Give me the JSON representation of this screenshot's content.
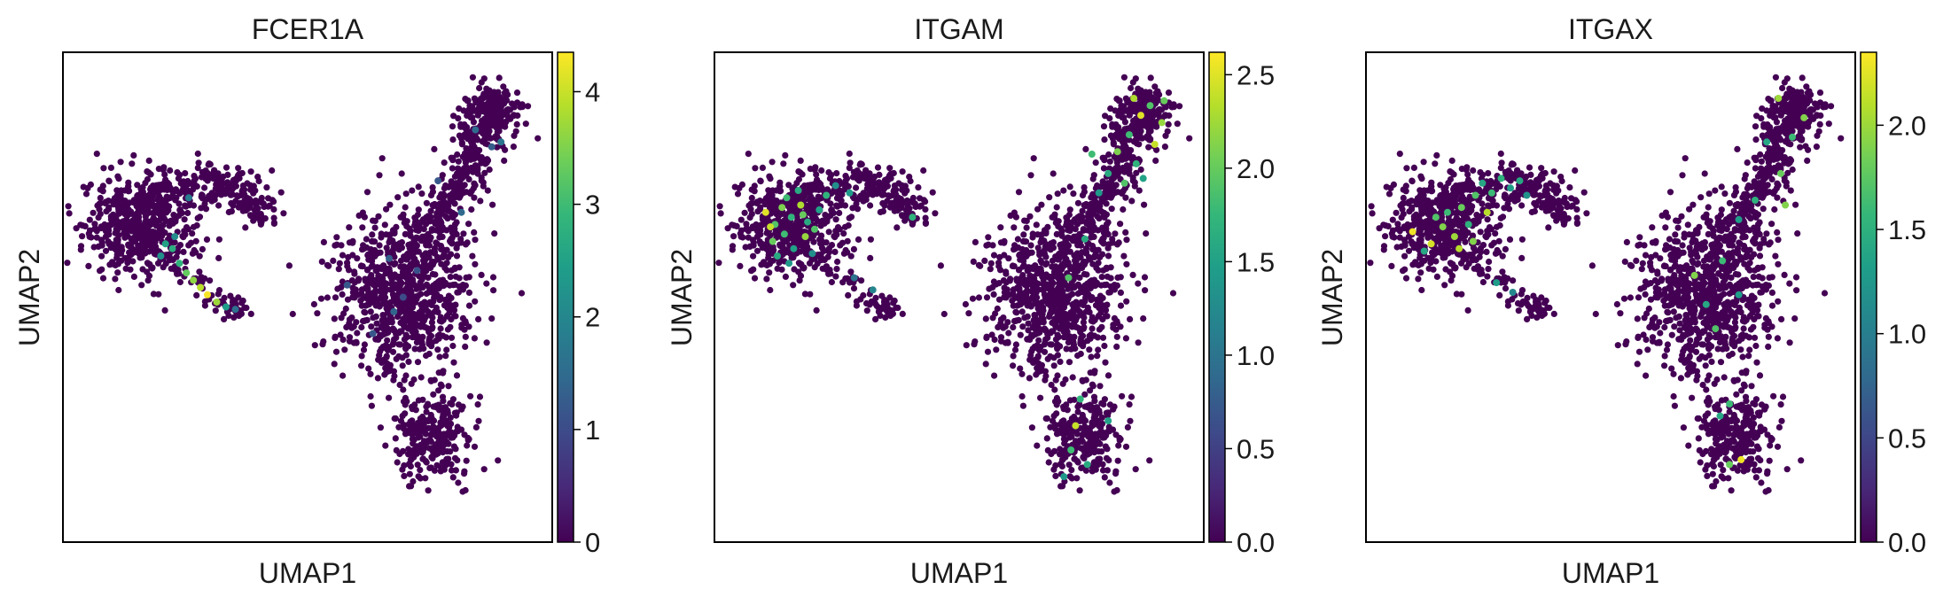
{
  "chart_data": [
    {
      "type": "scatter",
      "title": "FCER1A",
      "xlabel": "UMAP1",
      "ylabel": "UMAP2",
      "colormap": "viridis",
      "colorbar": {
        "range": [
          0,
          4.35
        ],
        "ticks": [
          0,
          1,
          2,
          3,
          4
        ],
        "tick_labels": [
          "0",
          "1",
          "2",
          "3",
          "4"
        ]
      },
      "highlights": [
        {
          "x": 3.0,
          "y": 6.3,
          "v": 2.5
        },
        {
          "x": 3.3,
          "y": 6.1,
          "v": 2.7
        },
        {
          "x": 3.6,
          "y": 5.5,
          "v": 2.8
        },
        {
          "x": 3.9,
          "y": 5.1,
          "v": 3.3
        },
        {
          "x": 4.2,
          "y": 4.8,
          "v": 3.6
        },
        {
          "x": 4.5,
          "y": 4.5,
          "v": 3.9
        },
        {
          "x": 4.8,
          "y": 4.2,
          "v": 4.3
        },
        {
          "x": 5.2,
          "y": 3.9,
          "v": 3.7
        },
        {
          "x": 5.6,
          "y": 3.7,
          "v": 2.4
        },
        {
          "x": 6.0,
          "y": 3.6,
          "v": 1.6
        },
        {
          "x": 3.4,
          "y": 6.6,
          "v": 2.1
        },
        {
          "x": 2.8,
          "y": 5.8,
          "v": 2.2
        },
        {
          "x": 4.0,
          "y": 8.2,
          "v": 1.8
        },
        {
          "x": 12.8,
          "y": 3.5,
          "v": 1.4
        },
        {
          "x": 11.9,
          "y": 2.6,
          "v": 1.2
        },
        {
          "x": 12.6,
          "y": 5.7,
          "v": 1.3
        },
        {
          "x": 13.8,
          "y": 5.2,
          "v": 1.1
        },
        {
          "x": 15.7,
          "y": 7.6,
          "v": 1.5
        },
        {
          "x": 14.7,
          "y": 8.9,
          "v": 1.2
        },
        {
          "x": 16.3,
          "y": 11.0,
          "v": 1.5
        },
        {
          "x": 17.0,
          "y": 10.3,
          "v": 1.3
        },
        {
          "x": 17.4,
          "y": 10.5,
          "v": 1.7
        },
        {
          "x": 13.2,
          "y": 4.1,
          "v": 1.0
        },
        {
          "x": 10.8,
          "y": 4.6,
          "v": 1.2
        }
      ]
    },
    {
      "type": "scatter",
      "title": "ITGAM",
      "xlabel": "UMAP1",
      "ylabel": "UMAP2",
      "colormap": "viridis",
      "colorbar": {
        "range": [
          0,
          2.62
        ],
        "ticks": [
          0,
          0.5,
          1,
          1.5,
          2,
          2.5
        ],
        "tick_labels": [
          "0.0",
          "0.5",
          "1.0",
          "1.5",
          "2.0",
          "2.5"
        ]
      },
      "highlights": [
        {
          "x": 0.8,
          "y": 7.6,
          "v": 2.5
        },
        {
          "x": 1.2,
          "y": 7.1,
          "v": 1.9
        },
        {
          "x": 1.5,
          "y": 7.8,
          "v": 2.1
        },
        {
          "x": 1.9,
          "y": 7.4,
          "v": 1.7
        },
        {
          "x": 2.3,
          "y": 7.9,
          "v": 2.3
        },
        {
          "x": 2.6,
          "y": 7.2,
          "v": 1.6
        },
        {
          "x": 1.1,
          "y": 6.4,
          "v": 2.0
        },
        {
          "x": 1.6,
          "y": 6.7,
          "v": 1.8
        },
        {
          "x": 2.0,
          "y": 6.1,
          "v": 1.5
        },
        {
          "x": 2.5,
          "y": 6.6,
          "v": 2.2
        },
        {
          "x": 2.9,
          "y": 6.9,
          "v": 1.9
        },
        {
          "x": 1.3,
          "y": 5.8,
          "v": 1.6
        },
        {
          "x": 1.8,
          "y": 5.5,
          "v": 1.4
        },
        {
          "x": 3.1,
          "y": 7.7,
          "v": 1.5
        },
        {
          "x": 3.4,
          "y": 8.3,
          "v": 1.7
        },
        {
          "x": 2.2,
          "y": 8.5,
          "v": 1.6
        },
        {
          "x": 3.8,
          "y": 8.7,
          "v": 1.3
        },
        {
          "x": 4.4,
          "y": 8.4,
          "v": 1.4
        },
        {
          "x": 2.8,
          "y": 5.9,
          "v": 1.3
        },
        {
          "x": 1.0,
          "y": 7.0,
          "v": 2.4
        },
        {
          "x": 2.4,
          "y": 7.5,
          "v": 2.0
        },
        {
          "x": 1.7,
          "y": 8.2,
          "v": 1.8
        },
        {
          "x": 7.1,
          "y": 7.4,
          "v": 1.7
        },
        {
          "x": 5.4,
          "y": 4.4,
          "v": 1.2
        },
        {
          "x": 4.6,
          "y": 4.9,
          "v": 1.0
        },
        {
          "x": 15.9,
          "y": 10.1,
          "v": 2.1
        },
        {
          "x": 16.4,
          "y": 10.8,
          "v": 1.8
        },
        {
          "x": 16.9,
          "y": 11.6,
          "v": 2.5
        },
        {
          "x": 17.3,
          "y": 12.0,
          "v": 1.9
        },
        {
          "x": 17.8,
          "y": 11.3,
          "v": 2.2
        },
        {
          "x": 17.5,
          "y": 10.4,
          "v": 2.4
        },
        {
          "x": 16.7,
          "y": 9.6,
          "v": 1.7
        },
        {
          "x": 15.5,
          "y": 9.2,
          "v": 1.6
        },
        {
          "x": 16.2,
          "y": 8.8,
          "v": 1.9
        },
        {
          "x": 17.0,
          "y": 9.0,
          "v": 1.5
        },
        {
          "x": 14.8,
          "y": 10.0,
          "v": 1.8
        },
        {
          "x": 15.1,
          "y": 8.4,
          "v": 1.4
        },
        {
          "x": 17.9,
          "y": 12.2,
          "v": 2.0
        },
        {
          "x": 16.6,
          "y": 12.3,
          "v": 2.3
        },
        {
          "x": 14.5,
          "y": 6.5,
          "v": 1.6
        },
        {
          "x": 13.8,
          "y": 4.9,
          "v": 1.9
        },
        {
          "x": 14.3,
          "y": -0.1,
          "v": 1.7
        },
        {
          "x": 14.1,
          "y": -1.2,
          "v": 2.4
        },
        {
          "x": 15.5,
          "y": -1.0,
          "v": 1.5
        },
        {
          "x": 13.9,
          "y": -2.2,
          "v": 1.8
        },
        {
          "x": 14.6,
          "y": -2.8,
          "v": 1.6
        },
        {
          "x": 13.6,
          "y": -3.3,
          "v": 1.4
        }
      ]
    },
    {
      "type": "scatter",
      "title": "ITGAX",
      "xlabel": "UMAP1",
      "ylabel": "UMAP2",
      "colormap": "viridis",
      "colorbar": {
        "range": [
          0,
          2.35
        ],
        "ticks": [
          0,
          0.5,
          1,
          1.5,
          2
        ],
        "tick_labels": [
          "0.0",
          "0.5",
          "1.0",
          "1.5",
          "2.0"
        ]
      },
      "highlights": [
        {
          "x": 0.6,
          "y": 6.8,
          "v": 2.3
        },
        {
          "x": 1.4,
          "y": 6.3,
          "v": 2.2
        },
        {
          "x": 1.9,
          "y": 7.0,
          "v": 1.9
        },
        {
          "x": 2.4,
          "y": 6.6,
          "v": 2.0
        },
        {
          "x": 2.1,
          "y": 7.6,
          "v": 1.6
        },
        {
          "x": 2.7,
          "y": 7.8,
          "v": 1.8
        },
        {
          "x": 3.0,
          "y": 7.1,
          "v": 1.5
        },
        {
          "x": 3.3,
          "y": 8.3,
          "v": 1.7
        },
        {
          "x": 3.6,
          "y": 8.8,
          "v": 1.4
        },
        {
          "x": 4.0,
          "y": 8.4,
          "v": 1.6
        },
        {
          "x": 4.4,
          "y": 9.0,
          "v": 1.5
        },
        {
          "x": 4.8,
          "y": 8.6,
          "v": 1.3
        },
        {
          "x": 5.2,
          "y": 8.9,
          "v": 1.4
        },
        {
          "x": 5.5,
          "y": 8.3,
          "v": 1.2
        },
        {
          "x": 2.6,
          "y": 6.1,
          "v": 2.1
        },
        {
          "x": 3.2,
          "y": 6.4,
          "v": 1.9
        },
        {
          "x": 1.6,
          "y": 7.4,
          "v": 1.7
        },
        {
          "x": 3.8,
          "y": 7.6,
          "v": 2.1
        },
        {
          "x": 1.1,
          "y": 6.0,
          "v": 1.4
        },
        {
          "x": 4.2,
          "y": 4.7,
          "v": 1.3
        },
        {
          "x": 4.9,
          "y": 4.3,
          "v": 1.1
        },
        {
          "x": 16.3,
          "y": 12.3,
          "v": 2.0
        },
        {
          "x": 17.4,
          "y": 11.5,
          "v": 1.9
        },
        {
          "x": 16.9,
          "y": 10.7,
          "v": 1.6
        },
        {
          "x": 15.8,
          "y": 10.5,
          "v": 1.4
        },
        {
          "x": 16.4,
          "y": 9.2,
          "v": 1.8
        },
        {
          "x": 15.3,
          "y": 8.1,
          "v": 1.5
        },
        {
          "x": 16.6,
          "y": 7.9,
          "v": 1.9
        },
        {
          "x": 14.6,
          "y": 7.3,
          "v": 1.3
        },
        {
          "x": 12.7,
          "y": 5.0,
          "v": 1.9
        },
        {
          "x": 13.9,
          "y": 5.6,
          "v": 1.6
        },
        {
          "x": 13.2,
          "y": 3.8,
          "v": 1.4
        },
        {
          "x": 14.6,
          "y": 4.2,
          "v": 1.3
        },
        {
          "x": 13.6,
          "y": 2.8,
          "v": 1.7
        },
        {
          "x": 14.2,
          "y": -0.3,
          "v": 1.6
        },
        {
          "x": 14.7,
          "y": -2.6,
          "v": 2.3
        },
        {
          "x": 14.2,
          "y": -2.8,
          "v": 1.8
        },
        {
          "x": 13.8,
          "y": -0.8,
          "v": 1.4
        }
      ]
    }
  ]
}
